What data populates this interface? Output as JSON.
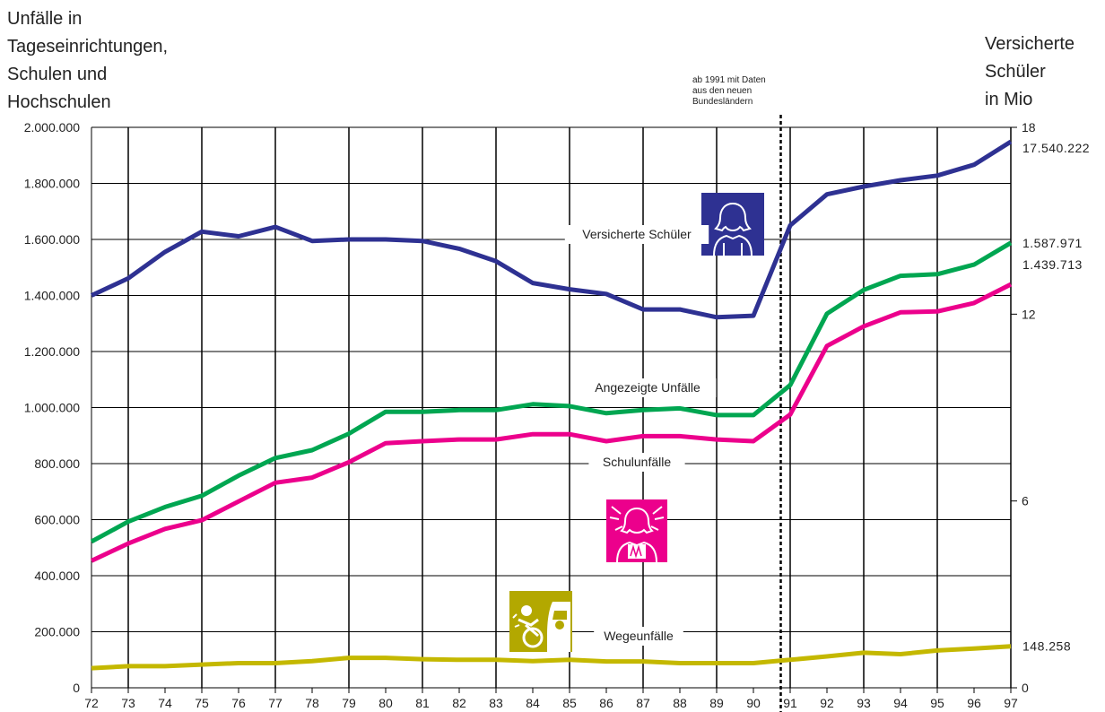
{
  "left_axis_title": [
    "Unfälle in",
    "Tageseinrichtungen,",
    "Schulen und",
    "Hochschulen"
  ],
  "right_axis_title": [
    "Versicherte",
    "Schüler",
    "in Mio"
  ],
  "note": [
    "ab 1991 mit Daten",
    "aus den neuen",
    "Bundesländern"
  ],
  "chart_data": {
    "type": "line",
    "x": [
      "72",
      "73",
      "74",
      "75",
      "76",
      "77",
      "78",
      "79",
      "80",
      "81",
      "82",
      "83",
      "84",
      "85",
      "86",
      "87",
      "88",
      "89",
      "90",
      "91",
      "92",
      "93",
      "94",
      "95",
      "96",
      "97"
    ],
    "ylim": [
      0,
      2000000
    ],
    "y_ticks": [
      "0",
      "200.000",
      "400.000",
      "600.000",
      "800.000",
      "1.000.000",
      "1.200.000",
      "1.400.000",
      "1.600.000",
      "1.800.000",
      "2.000.000"
    ],
    "y2lim": [
      0,
      18
    ],
    "y2_ticks": [
      "0",
      "6",
      "12",
      "18"
    ],
    "grid": true,
    "divider_after": "90",
    "series": [
      {
        "name": "Versicherte Schüler",
        "axis": "right",
        "color": "#2e3192",
        "values": [
          12.6,
          13.15,
          14.0,
          14.65,
          14.5,
          14.8,
          14.35,
          14.4,
          14.4,
          14.35,
          14.1,
          13.7,
          13.0,
          12.8,
          12.65,
          12.15,
          12.15,
          11.9,
          11.95,
          14.85,
          15.85,
          16.1,
          16.3,
          16.45,
          16.8,
          17.54
        ],
        "end_label": "17.540.222"
      },
      {
        "name": "Angezeigte Unfälle",
        "axis": "left",
        "color": "#00a651",
        "values": [
          522000,
          593000,
          645000,
          685000,
          757000,
          820000,
          848000,
          907000,
          985000,
          985000,
          991000,
          991000,
          1012000,
          1005000,
          980000,
          991000,
          997000,
          973000,
          973000,
          1080000,
          1335000,
          1420000,
          1470000,
          1476000,
          1510000,
          1587971
        ],
        "end_label": "1.587.971"
      },
      {
        "name": "Schulunfälle",
        "axis": "left",
        "color": "#ec008c",
        "values": [
          453000,
          515000,
          567000,
          598000,
          665000,
          732000,
          750000,
          805000,
          873000,
          880000,
          886000,
          886000,
          905000,
          905000,
          880000,
          898000,
          898000,
          886000,
          880000,
          975000,
          1220000,
          1290000,
          1340000,
          1343000,
          1373000,
          1439713
        ],
        "end_label": "1.439.713"
      },
      {
        "name": "Wegeunfälle",
        "axis": "left",
        "color": "#c4b800",
        "values": [
          70000,
          77000,
          77000,
          83000,
          88000,
          88000,
          95000,
          107000,
          107000,
          102000,
          100000,
          100000,
          95000,
          100000,
          94000,
          94000,
          88000,
          88000,
          88000,
          100000,
          112000,
          125000,
          120000,
          133000,
          140000,
          148258
        ],
        "end_label": "148.258"
      }
    ]
  },
  "icons": {
    "schueler": "student-icon",
    "schulunfall": "injured-student-icon",
    "wegeunfall": "traffic-accident-icon"
  }
}
